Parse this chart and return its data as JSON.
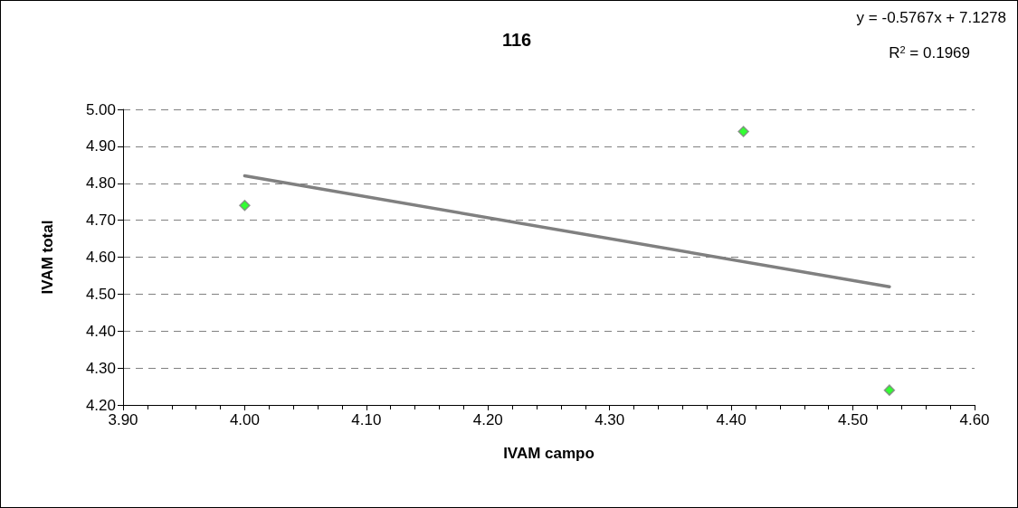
{
  "chart_data": {
    "type": "scatter",
    "title": "116",
    "xlabel": "IVAM campo",
    "ylabel": "IVAM total",
    "xlim": [
      3.9,
      4.6
    ],
    "xticks": [
      {
        "value": 3.9,
        "label": "3.90"
      },
      {
        "value": 4.0,
        "label": "4.00"
      },
      {
        "value": 4.1,
        "label": "4.10"
      },
      {
        "value": 4.2,
        "label": "4.20"
      },
      {
        "value": 4.3,
        "label": "4.30"
      },
      {
        "value": 4.4,
        "label": "4.40"
      },
      {
        "value": 4.5,
        "label": "4.50"
      },
      {
        "value": 4.6,
        "label": "4.60"
      }
    ],
    "ylim": [
      4.2,
      5.0
    ],
    "yticks": [
      {
        "value": 4.2,
        "label": "4.20"
      },
      {
        "value": 4.3,
        "label": "4.30"
      },
      {
        "value": 4.4,
        "label": "4.40"
      },
      {
        "value": 4.5,
        "label": "4.50"
      },
      {
        "value": 4.6,
        "label": "4.60"
      },
      {
        "value": 4.7,
        "label": "4.70"
      },
      {
        "value": 4.8,
        "label": "4.80"
      },
      {
        "value": 4.9,
        "label": "4.90"
      },
      {
        "value": 5.0,
        "label": "5.00"
      }
    ],
    "grid": "y",
    "annotations": [
      "y = -0.5767x + 7.1278",
      "R$^{2}$ = 0.1969"
    ],
    "series": [
      {
        "marker": "diamond",
        "color": "#00ff00",
        "x": [
          4.0,
          4.41,
          4.53
        ],
        "values": [
          4.74,
          4.94,
          4.24
        ]
      },
      {
        "type": "line",
        "marker": "none",
        "color": "#808080",
        "x": [
          4.0,
          4.53
        ],
        "values": [
          4.82,
          4.52
        ]
      }
    ]
  }
}
